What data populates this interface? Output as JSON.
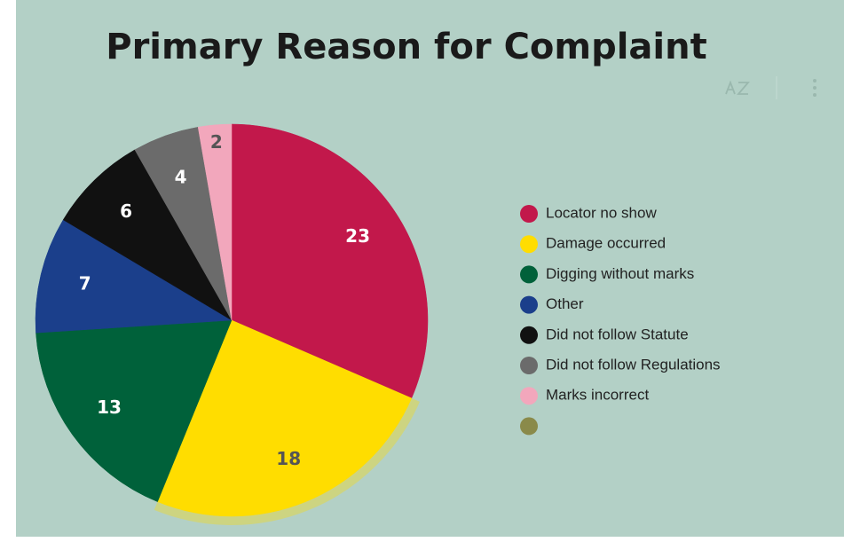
{
  "chart_data": {
    "type": "pie",
    "title": "Primary Reason for Complaint",
    "categories": [
      "Locator no show",
      "Damage occurred",
      "Digging without marks",
      "Other",
      "Did not follow Statute",
      "Did not follow Regulations",
      "Marks incorrect",
      null
    ],
    "values": [
      23,
      18,
      13,
      7,
      6,
      4,
      2,
      0
    ],
    "colors": [
      "#c2184b",
      "#ffdd00",
      "#00613a",
      "#1b3f8b",
      "#111111",
      "#6b6b6b",
      "#f2a7bc",
      "#8a8a4a"
    ],
    "highlight": 1,
    "legend": "right"
  }
}
